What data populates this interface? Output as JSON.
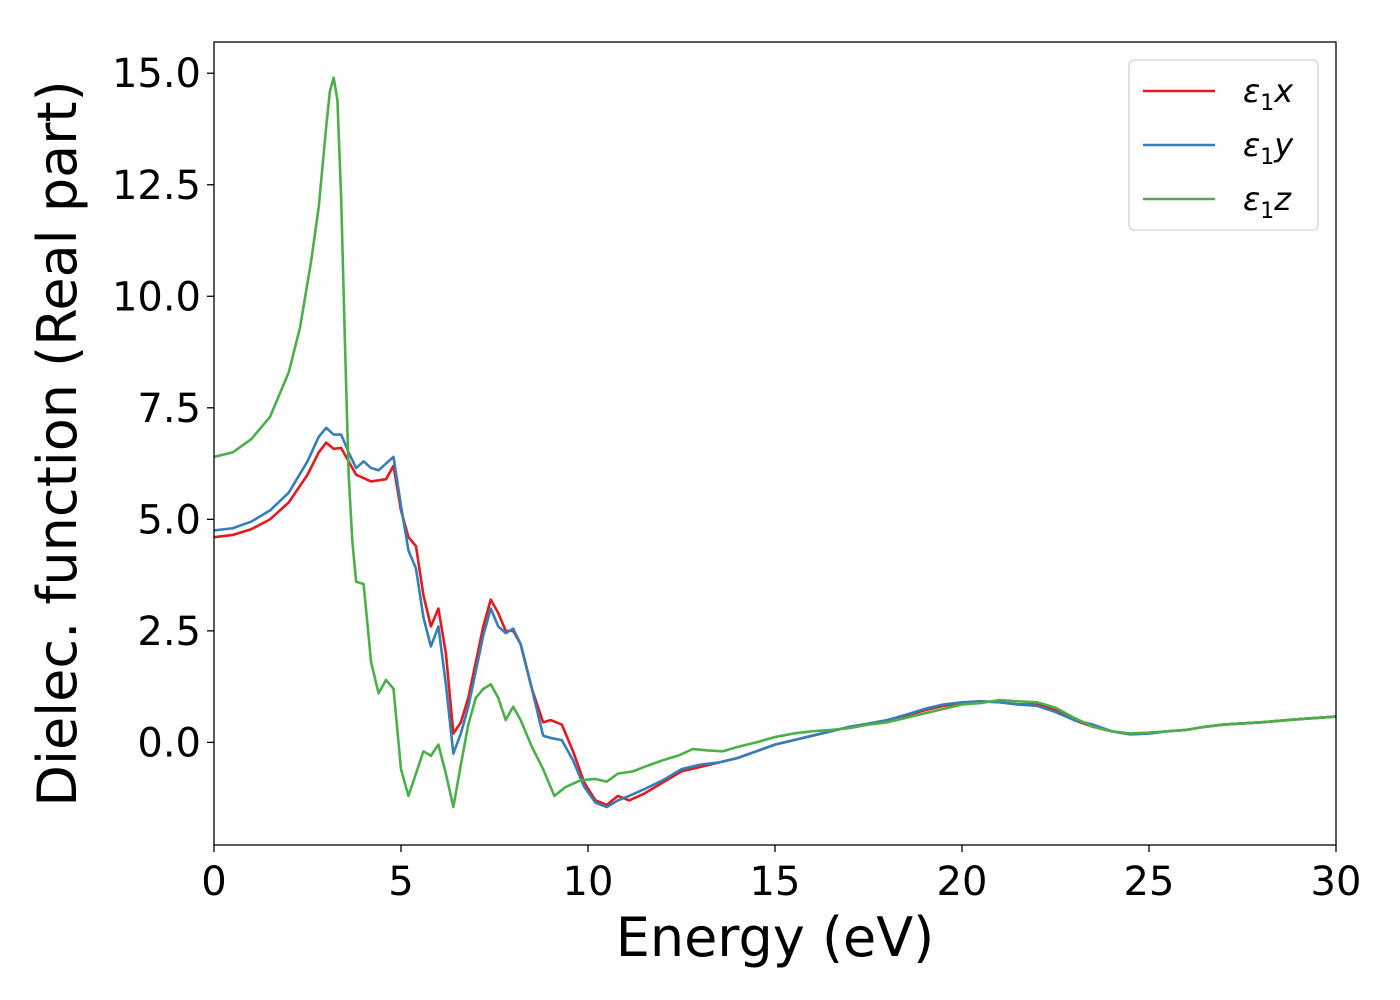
{
  "chart_data": {
    "type": "line",
    "title": "",
    "xlabel": "Energy (eV)",
    "ylabel": "Dielec. function (Real part)",
    "xlim": [
      0,
      30
    ],
    "ylim": [
      -2.3,
      15.7
    ],
    "xticks": [
      0,
      5,
      10,
      15,
      20,
      25,
      30
    ],
    "xtick_labels": [
      "0",
      "5",
      "10",
      "15",
      "20",
      "25",
      "30"
    ],
    "yticks": [
      0,
      2.5,
      5,
      7.5,
      10,
      12.5,
      15
    ],
    "ytick_labels": [
      "0.0",
      "2.5",
      "5.0",
      "7.5",
      "10.0",
      "12.5",
      "15.0"
    ],
    "grid": false,
    "legend_position": "top-right",
    "series": [
      {
        "name": "ε1x",
        "legend_main": "ε",
        "legend_sub": "1",
        "legend_var": "x",
        "color": "#e41a1c",
        "x": [
          0,
          0.5,
          1.0,
          1.5,
          2.0,
          2.5,
          2.8,
          3.0,
          3.2,
          3.4,
          3.6,
          3.8,
          4.2,
          4.6,
          4.8,
          5.0,
          5.2,
          5.4,
          5.6,
          5.8,
          6.0,
          6.2,
          6.4,
          6.6,
          6.8,
          7.0,
          7.2,
          7.4,
          7.6,
          7.8,
          8.0,
          8.2,
          8.5,
          8.8,
          9.0,
          9.3,
          9.6,
          9.9,
          10.2,
          10.5,
          10.8,
          11.1,
          11.5,
          12.0,
          12.5,
          13.0,
          13.5,
          14.0,
          14.5,
          15.0,
          15.5,
          16.0,
          16.5,
          17.0,
          17.5,
          18.0,
          18.5,
          19.0,
          19.5,
          20.0,
          20.5,
          21.0,
          21.5,
          22.0,
          22.5,
          23.0,
          23.5,
          24.0,
          24.5,
          25.0,
          25.5,
          26.0,
          26.5,
          27.0,
          28.0,
          29.0,
          30.0
        ],
        "y": [
          4.6,
          4.65,
          4.78,
          5.0,
          5.38,
          6.0,
          6.5,
          6.72,
          6.58,
          6.6,
          6.3,
          6.0,
          5.85,
          5.9,
          6.2,
          5.2,
          4.6,
          4.4,
          3.3,
          2.6,
          3.0,
          2.0,
          0.2,
          0.45,
          1.0,
          1.8,
          2.6,
          3.2,
          2.9,
          2.5,
          2.5,
          2.2,
          1.2,
          0.45,
          0.5,
          0.4,
          -0.2,
          -0.9,
          -1.3,
          -1.4,
          -1.2,
          -1.3,
          -1.15,
          -0.9,
          -0.65,
          -0.55,
          -0.45,
          -0.35,
          -0.2,
          -0.05,
          0.05,
          0.15,
          0.25,
          0.35,
          0.42,
          0.5,
          0.6,
          0.72,
          0.82,
          0.88,
          0.92,
          0.9,
          0.85,
          0.85,
          0.72,
          0.5,
          0.35,
          0.25,
          0.18,
          0.2,
          0.25,
          0.28,
          0.35,
          0.4,
          0.45,
          0.52,
          0.58
        ]
      },
      {
        "name": "ε1y",
        "legend_main": "ε",
        "legend_sub": "1",
        "legend_var": "y",
        "color": "#377eb8",
        "x": [
          0,
          0.5,
          1.0,
          1.5,
          2.0,
          2.5,
          2.8,
          3.0,
          3.2,
          3.4,
          3.6,
          3.8,
          4.0,
          4.2,
          4.4,
          4.6,
          4.8,
          5.0,
          5.2,
          5.4,
          5.6,
          5.8,
          6.0,
          6.2,
          6.4,
          6.6,
          6.8,
          7.0,
          7.2,
          7.4,
          7.6,
          7.8,
          8.0,
          8.2,
          8.5,
          8.8,
          9.0,
          9.3,
          9.6,
          9.9,
          10.2,
          10.5,
          10.8,
          11.1,
          11.5,
          12.0,
          12.5,
          13.0,
          13.5,
          14.0,
          14.5,
          15.0,
          15.5,
          16.0,
          16.5,
          17.0,
          17.5,
          18.0,
          18.5,
          19.0,
          19.5,
          20.0,
          20.5,
          21.0,
          21.5,
          22.0,
          22.5,
          23.0,
          23.5,
          24.0,
          24.5,
          25.0,
          25.5,
          26.0,
          26.5,
          27.0,
          28.0,
          29.0,
          30.0
        ],
        "y": [
          4.75,
          4.8,
          4.95,
          5.2,
          5.6,
          6.3,
          6.85,
          7.05,
          6.9,
          6.9,
          6.5,
          6.15,
          6.3,
          6.15,
          6.1,
          6.25,
          6.4,
          5.3,
          4.3,
          3.9,
          2.8,
          2.15,
          2.6,
          1.3,
          -0.25,
          0.2,
          0.8,
          1.6,
          2.4,
          3.0,
          2.6,
          2.45,
          2.55,
          2.2,
          1.2,
          0.15,
          0.1,
          0.05,
          -0.4,
          -1.0,
          -1.35,
          -1.45,
          -1.3,
          -1.2,
          -1.05,
          -0.85,
          -0.6,
          -0.5,
          -0.45,
          -0.35,
          -0.2,
          -0.05,
          0.05,
          0.15,
          0.25,
          0.35,
          0.42,
          0.5,
          0.62,
          0.75,
          0.85,
          0.9,
          0.92,
          0.9,
          0.85,
          0.82,
          0.68,
          0.5,
          0.4,
          0.25,
          0.18,
          0.2,
          0.25,
          0.28,
          0.35,
          0.4,
          0.45,
          0.52,
          0.58
        ]
      },
      {
        "name": "ε1z",
        "legend_main": "ε",
        "legend_sub": "1",
        "legend_var": "z",
        "color": "#4daf4a",
        "x": [
          0,
          0.5,
          1.0,
          1.5,
          2.0,
          2.3,
          2.6,
          2.8,
          3.0,
          3.1,
          3.2,
          3.3,
          3.4,
          3.5,
          3.6,
          3.7,
          3.8,
          4.0,
          4.2,
          4.4,
          4.6,
          4.8,
          5.0,
          5.2,
          5.4,
          5.6,
          5.8,
          6.0,
          6.2,
          6.4,
          6.6,
          6.8,
          7.0,
          7.2,
          7.4,
          7.6,
          7.8,
          8.0,
          8.2,
          8.5,
          8.8,
          9.1,
          9.4,
          9.8,
          10.2,
          10.5,
          10.8,
          11.2,
          11.6,
          12.0,
          12.4,
          12.8,
          13.2,
          13.6,
          14.0,
          14.5,
          15.0,
          15.5,
          16.0,
          16.5,
          17.0,
          17.5,
          18.0,
          18.5,
          19.0,
          19.5,
          20.0,
          20.5,
          21.0,
          21.5,
          22.0,
          22.5,
          23.0,
          23.5,
          24.0,
          24.5,
          25.0,
          25.5,
          26.0,
          26.5,
          27.0,
          28.0,
          29.0,
          30.0
        ],
        "y": [
          6.4,
          6.5,
          6.8,
          7.3,
          8.3,
          9.3,
          10.8,
          12.0,
          13.8,
          14.6,
          14.9,
          14.4,
          12.2,
          9.0,
          6.0,
          4.5,
          3.6,
          3.55,
          1.8,
          1.1,
          1.4,
          1.2,
          -0.6,
          -1.2,
          -0.7,
          -0.2,
          -0.3,
          -0.05,
          -0.7,
          -1.45,
          -0.5,
          0.4,
          1.0,
          1.2,
          1.3,
          1.0,
          0.5,
          0.8,
          0.5,
          -0.1,
          -0.6,
          -1.2,
          -1.0,
          -0.85,
          -0.82,
          -0.88,
          -0.7,
          -0.65,
          -0.52,
          -0.4,
          -0.3,
          -0.15,
          -0.18,
          -0.2,
          -0.1,
          0.0,
          0.12,
          0.2,
          0.25,
          0.28,
          0.32,
          0.4,
          0.45,
          0.55,
          0.65,
          0.75,
          0.85,
          0.88,
          0.95,
          0.92,
          0.9,
          0.78,
          0.55,
          0.35,
          0.25,
          0.2,
          0.22,
          0.25,
          0.28,
          0.35,
          0.4,
          0.45,
          0.52,
          0.58
        ]
      }
    ]
  }
}
